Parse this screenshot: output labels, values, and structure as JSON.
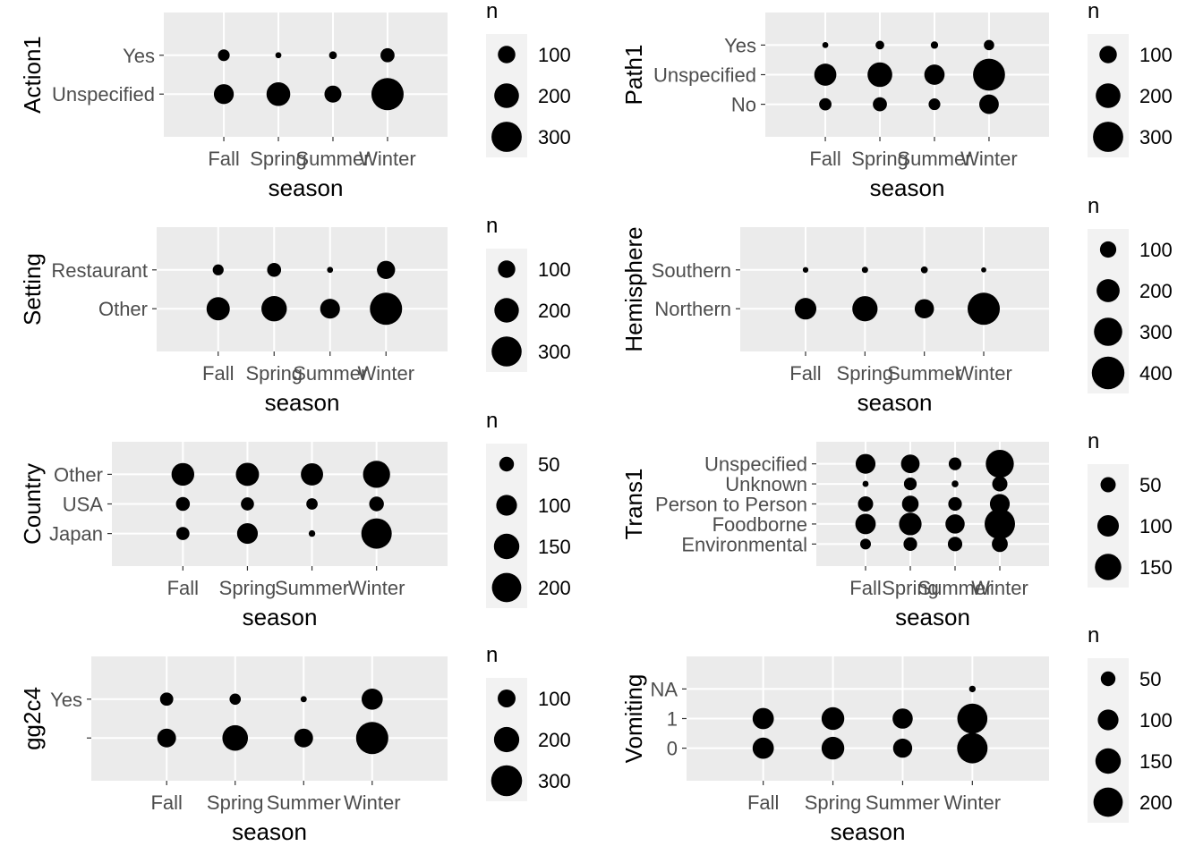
{
  "chart_data": [
    {
      "type": "scatter",
      "xlabel": "season",
      "ylabel": "Action1",
      "categories": [
        "Fall",
        "Spring",
        "Summer",
        "Winter"
      ],
      "y_categories": [
        "Unspecified",
        "Yes"
      ],
      "size_legend": {
        "title": "n",
        "breaks": [
          100,
          200,
          300
        ]
      },
      "points": [
        {
          "x": "Fall",
          "y": "Yes",
          "n": 45
        },
        {
          "x": "Spring",
          "y": "Yes",
          "n": 12
        },
        {
          "x": "Summer",
          "y": "Yes",
          "n": 20
        },
        {
          "x": "Winter",
          "y": "Yes",
          "n": 65
        },
        {
          "x": "Fall",
          "y": "Unspecified",
          "n": 130
        },
        {
          "x": "Spring",
          "y": "Unspecified",
          "n": 185
        },
        {
          "x": "Summer",
          "y": "Unspecified",
          "n": 95
        },
        {
          "x": "Winter",
          "y": "Unspecified",
          "n": 340
        }
      ]
    },
    {
      "type": "scatter",
      "xlabel": "season",
      "ylabel": "Path1",
      "categories": [
        "Fall",
        "Spring",
        "Summer",
        "Winter"
      ],
      "y_categories": [
        "No",
        "Unspecified",
        "Yes"
      ],
      "size_legend": {
        "title": "n",
        "breaks": [
          100,
          200,
          300
        ]
      },
      "points": [
        {
          "x": "Fall",
          "y": "Yes",
          "n": 12
        },
        {
          "x": "Spring",
          "y": "Yes",
          "n": 25
        },
        {
          "x": "Summer",
          "y": "Yes",
          "n": 18
        },
        {
          "x": "Winter",
          "y": "Yes",
          "n": 35
        },
        {
          "x": "Fall",
          "y": "Unspecified",
          "n": 160
        },
        {
          "x": "Spring",
          "y": "Unspecified",
          "n": 200
        },
        {
          "x": "Summer",
          "y": "Unspecified",
          "n": 135
        },
        {
          "x": "Winter",
          "y": "Unspecified",
          "n": 335
        },
        {
          "x": "Fall",
          "y": "No",
          "n": 50
        },
        {
          "x": "Spring",
          "y": "No",
          "n": 65
        },
        {
          "x": "Summer",
          "y": "No",
          "n": 45
        },
        {
          "x": "Winter",
          "y": "No",
          "n": 125
        }
      ]
    },
    {
      "type": "scatter",
      "xlabel": "season",
      "ylabel": "Setting",
      "categories": [
        "Fall",
        "Spring",
        "Summer",
        "Winter"
      ],
      "y_categories": [
        "Other",
        "Restaurant"
      ],
      "size_legend": {
        "title": "n",
        "breaks": [
          100,
          200,
          300
        ]
      },
      "points": [
        {
          "x": "Fall",
          "y": "Restaurant",
          "n": 40
        },
        {
          "x": "Spring",
          "y": "Restaurant",
          "n": 65
        },
        {
          "x": "Summer",
          "y": "Restaurant",
          "n": 12
        },
        {
          "x": "Winter",
          "y": "Restaurant",
          "n": 110
        },
        {
          "x": "Fall",
          "y": "Other",
          "n": 180
        },
        {
          "x": "Spring",
          "y": "Other",
          "n": 215
        },
        {
          "x": "Summer",
          "y": "Other",
          "n": 130
        },
        {
          "x": "Winter",
          "y": "Other",
          "n": 345
        }
      ]
    },
    {
      "type": "scatter",
      "xlabel": "season",
      "ylabel": "Hemisphere",
      "categories": [
        "Fall",
        "Spring",
        "Summer",
        "Winter"
      ],
      "y_categories": [
        "Northern",
        "Southern"
      ],
      "size_legend": {
        "title": "n",
        "breaks": [
          100,
          200,
          300,
          400
        ]
      },
      "points": [
        {
          "x": "Fall",
          "y": "Southern",
          "n": 12
        },
        {
          "x": "Spring",
          "y": "Southern",
          "n": 15
        },
        {
          "x": "Summer",
          "y": "Southern",
          "n": 18
        },
        {
          "x": "Winter",
          "y": "Southern",
          "n": 10
        },
        {
          "x": "Fall",
          "y": "Northern",
          "n": 175
        },
        {
          "x": "Spring",
          "y": "Northern",
          "n": 240
        },
        {
          "x": "Summer",
          "y": "Northern",
          "n": 140
        },
        {
          "x": "Winter",
          "y": "Northern",
          "n": 390
        }
      ]
    },
    {
      "type": "scatter",
      "xlabel": "season",
      "ylabel": "Country",
      "categories": [
        "Fall",
        "Spring",
        "Summer",
        "Winter"
      ],
      "y_categories": [
        "Japan",
        "USA",
        "Other"
      ],
      "size_legend": {
        "title": "n",
        "breaks": [
          50,
          100,
          150,
          200
        ]
      },
      "points": [
        {
          "x": "Fall",
          "y": "Other",
          "n": 120
        },
        {
          "x": "Spring",
          "y": "Other",
          "n": 125
        },
        {
          "x": "Summer",
          "y": "Other",
          "n": 115
        },
        {
          "x": "Winter",
          "y": "Other",
          "n": 170
        },
        {
          "x": "Fall",
          "y": "USA",
          "n": 45
        },
        {
          "x": "Spring",
          "y": "USA",
          "n": 40
        },
        {
          "x": "Summer",
          "y": "USA",
          "n": 30
        },
        {
          "x": "Winter",
          "y": "USA",
          "n": 50
        },
        {
          "x": "Fall",
          "y": "Japan",
          "n": 40
        },
        {
          "x": "Spring",
          "y": "Japan",
          "n": 100
        },
        {
          "x": "Summer",
          "y": "Japan",
          "n": 10
        },
        {
          "x": "Winter",
          "y": "Japan",
          "n": 215
        }
      ]
    },
    {
      "type": "scatter",
      "xlabel": "season",
      "ylabel": "Trans1",
      "categories": [
        "Fall",
        "Spring",
        "Summer",
        "Winter"
      ],
      "y_categories": [
        "Environmental",
        "Foodborne",
        "Person to Person",
        "Unknown",
        "Unspecified"
      ],
      "size_legend": {
        "title": "n",
        "breaks": [
          50,
          100,
          150
        ]
      },
      "points": [
        {
          "x": "Fall",
          "y": "Unspecified",
          "n": 85
        },
        {
          "x": "Spring",
          "y": "Unspecified",
          "n": 75
        },
        {
          "x": "Summer",
          "y": "Unspecified",
          "n": 35
        },
        {
          "x": "Winter",
          "y": "Unspecified",
          "n": 170
        },
        {
          "x": "Fall",
          "y": "Unknown",
          "n": 8
        },
        {
          "x": "Spring",
          "y": "Unknown",
          "n": 35
        },
        {
          "x": "Summer",
          "y": "Unknown",
          "n": 10
        },
        {
          "x": "Winter",
          "y": "Unknown",
          "n": 50
        },
        {
          "x": "Fall",
          "y": "Person to Person",
          "n": 50
        },
        {
          "x": "Spring",
          "y": "Person to Person",
          "n": 60
        },
        {
          "x": "Summer",
          "y": "Person to Person",
          "n": 40
        },
        {
          "x": "Winter",
          "y": "Person to Person",
          "n": 85
        },
        {
          "x": "Fall",
          "y": "Foodborne",
          "n": 90
        },
        {
          "x": "Spring",
          "y": "Foodborne",
          "n": 110
        },
        {
          "x": "Summer",
          "y": "Foodborne",
          "n": 80
        },
        {
          "x": "Winter",
          "y": "Foodborne",
          "n": 200
        },
        {
          "x": "Fall",
          "y": "Environmental",
          "n": 25
        },
        {
          "x": "Spring",
          "y": "Environmental",
          "n": 40
        },
        {
          "x": "Summer",
          "y": "Environmental",
          "n": 45
        },
        {
          "x": "Winter",
          "y": "Environmental",
          "n": 55
        }
      ]
    },
    {
      "type": "scatter",
      "xlabel": "season",
      "ylabel": "gg2c4",
      "categories": [
        "Fall",
        "Spring",
        "Summer",
        "Winter"
      ],
      "y_categories": [
        "",
        "Yes"
      ],
      "size_legend": {
        "title": "n",
        "breaks": [
          100,
          200,
          300
        ]
      },
      "points": [
        {
          "x": "Fall",
          "y": "Yes",
          "n": 55
        },
        {
          "x": "Spring",
          "y": "Yes",
          "n": 40
        },
        {
          "x": "Summer",
          "y": "Yes",
          "n": 12
        },
        {
          "x": "Winter",
          "y": "Yes",
          "n": 140
        },
        {
          "x": "Fall",
          "y": "",
          "n": 110
        },
        {
          "x": "Spring",
          "y": "",
          "n": 205
        },
        {
          "x": "Summer",
          "y": "",
          "n": 110
        },
        {
          "x": "Winter",
          "y": "",
          "n": 325
        }
      ]
    },
    {
      "type": "scatter",
      "xlabel": "season",
      "ylabel": "Vomiting",
      "categories": [
        "Fall",
        "Spring",
        "Summer",
        "Winter"
      ],
      "y_categories": [
        "0",
        "1",
        "NA"
      ],
      "size_legend": {
        "title": "n",
        "breaks": [
          50,
          100,
          150,
          200
        ]
      },
      "points": [
        {
          "x": "Fall",
          "y": "NA",
          "n": 0
        },
        {
          "x": "Spring",
          "y": "NA",
          "n": 0
        },
        {
          "x": "Summer",
          "y": "NA",
          "n": 0
        },
        {
          "x": "Winter",
          "y": "NA",
          "n": 10
        },
        {
          "x": "Fall",
          "y": "1",
          "n": 105
        },
        {
          "x": "Spring",
          "y": "1",
          "n": 120
        },
        {
          "x": "Summer",
          "y": "1",
          "n": 95
        },
        {
          "x": "Winter",
          "y": "1",
          "n": 210
        },
        {
          "x": "Fall",
          "y": "0",
          "n": 105
        },
        {
          "x": "Spring",
          "y": "0",
          "n": 120
        },
        {
          "x": "Summer",
          "y": "0",
          "n": 85
        },
        {
          "x": "Winter",
          "y": "0",
          "n": 215
        }
      ]
    }
  ],
  "colors": {
    "panel_background": "#ebebeb",
    "grid_major": "#ffffff",
    "point": "#000000",
    "tick_label": "#4d4d4d",
    "axis_title": "#000000",
    "legend_key_background": "#f2f2f2"
  }
}
